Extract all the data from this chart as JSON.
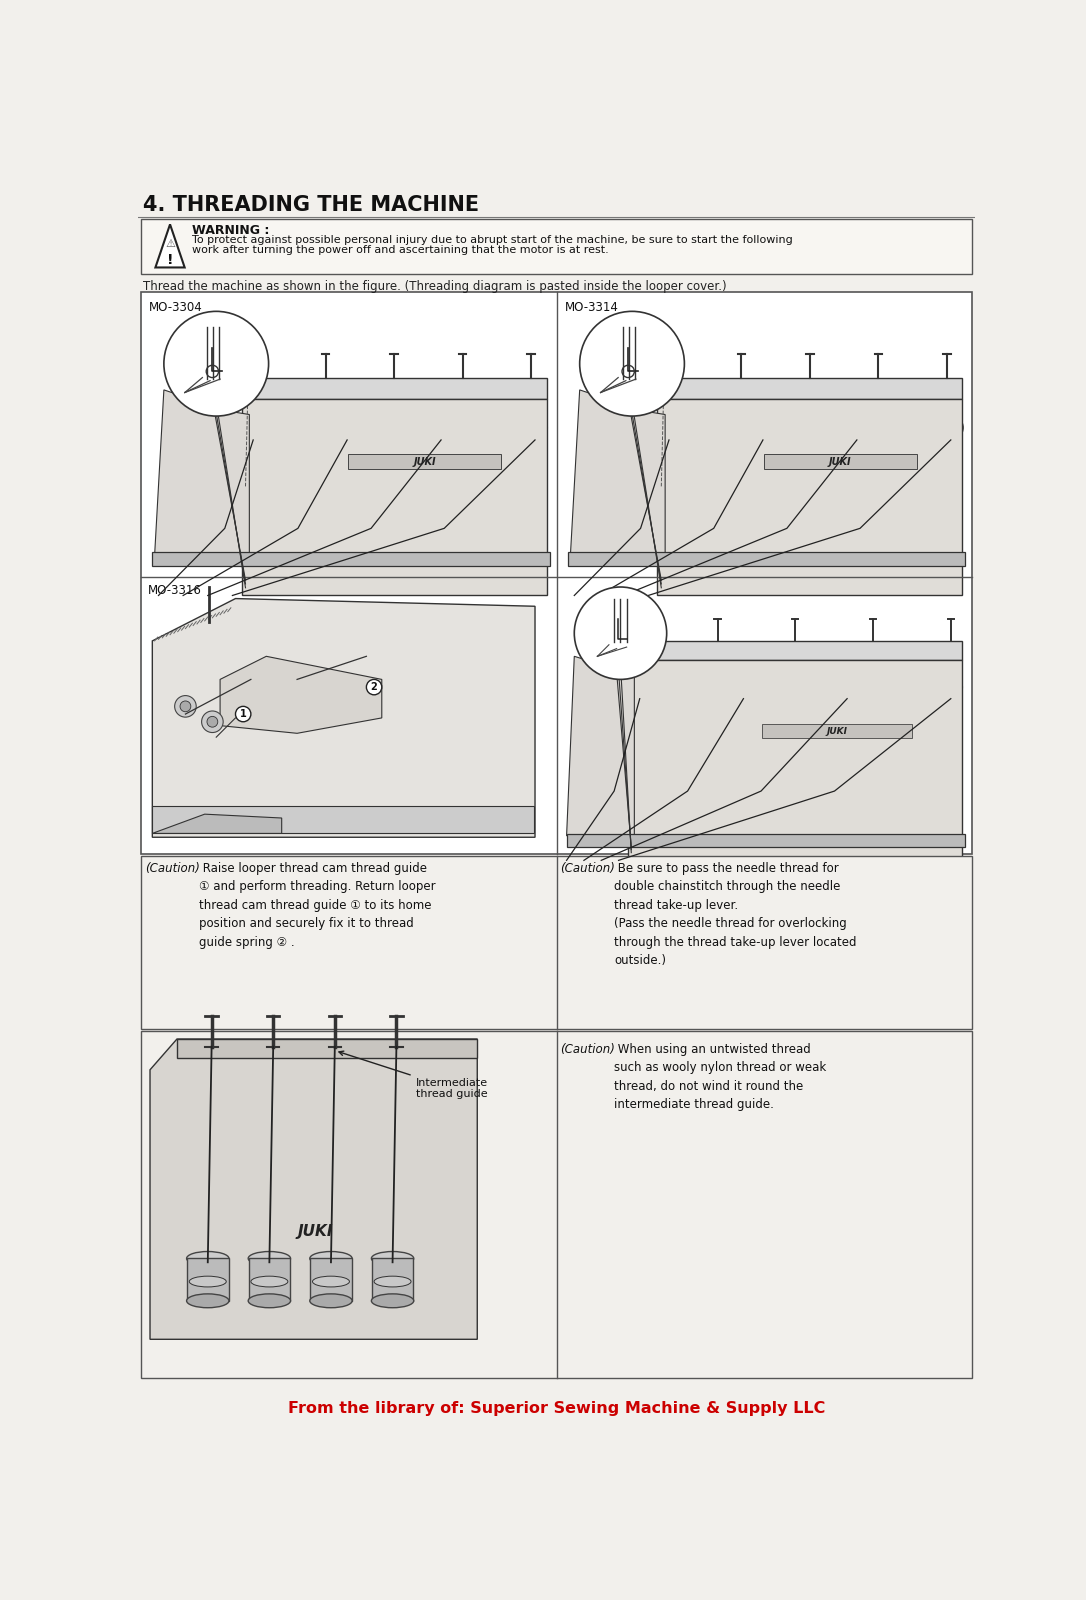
{
  "title": "4. THREADING THE MACHINE",
  "warning_title": "WARNING :",
  "warning_line1": "To protect against possible personal injury due to abrupt start of the machine, be sure to start the following",
  "warning_line2": "work after turning the power off and ascertaining that the motor is at rest.",
  "instruction_text": "Thread the machine as shown in the figure. (Threading diagram is pasted inside the looper cover.)",
  "panel1_label": "MO-3304",
  "panel2_label": "MO-3314",
  "panel3_label": "MO-3316",
  "caution1_title": "(Caution)",
  "caution1_text": " Raise looper thread cam thread guide\n① and perform threading. Return looper\nthread cam thread guide ① to its home\nposition and securely fix it to thread\nguide spring ② .",
  "caution2_title": "(Caution)",
  "caution2_text": " Be sure to pass the needle thread for\ndouble chainstitch through the needle\nthread take-up lever.\n(Pass the needle thread for overlocking\nthrough the thread take-up lever located\noutside.)",
  "caution3_title": "(Caution)",
  "caution3_text": " When using an untwisted thread\nsuch as wooly nylon thread or weak\nthread, do not wind it round the\nintermediate thread guide.",
  "intermediate_label": "Intermediate\nthread guide",
  "footer_text": "From the library of: Superior Sewing Machine & Supply LLC",
  "bg_color": "#f2f0ec",
  "panel_color": "#ffffff",
  "text_color": "#111111",
  "footer_color": "#cc0000",
  "border_color": "#444444",
  "machine_fill": "#e8e8e8",
  "machine_edge": "#333333"
}
